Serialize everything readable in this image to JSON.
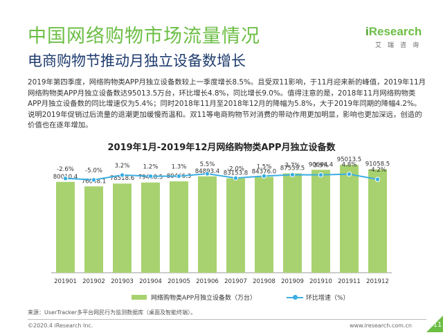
{
  "header": {
    "title": "中国网络购物市场流量情况",
    "subtitle": "电商购物节推动月独立设备数增长",
    "logo_brand_i": "i",
    "logo_brand_rest": "Research",
    "logo_cn": "艾瑞咨询"
  },
  "description": "2019年第四季度，网络购物类APP月独立设备数较上一季度增长8.5%。且受双11影响，于11月迎来新的峰值，2019年11月网络购物类APP月独立设备数达95013.5万台，环比增长4.8%，同比增长9.0%。值得注意的是，2018年11月网络购物类APP月独立设备数的同比增速仅为5.4%；同时2018年11月至2018年12月的降幅为5.8%，大于2019年同期的降幅4.2%。说明2019年促销过后流量的退潮更加缓慢而温和。双11等电商购物节对消费的带动作用更加明显，影响也更加深远，创造的价值也在逐年增加。",
  "chart_data": {
    "type": "bar",
    "title": "2019年1月-2019年12月网络购物类APP月独立设备数",
    "categories": [
      "201901",
      "201902",
      "201903",
      "201904",
      "201905",
      "201906",
      "201907",
      "201908",
      "201909",
      "201910",
      "201911",
      "201912"
    ],
    "series": [
      {
        "name": "网络购物类APP月独立设备数（万台）",
        "type": "bar",
        "values": [
          80010.4,
          76048.1,
          78518.6,
          79438.5,
          80496.3,
          84893.4,
          83153.8,
          84376.0,
          87539.5,
          90644.4,
          95013.5,
          91058.5
        ],
        "labels": [
          "80010.4",
          "76048.1",
          "78518.6",
          "79438.5",
          "80496.3",
          "84893.4",
          "83153.8",
          "84376.0",
          "87539.5",
          "90644.4",
          "95013.5",
          "91058.5"
        ]
      },
      {
        "name": "环比增速（%）",
        "type": "line",
        "values": [
          -2.6,
          -5.0,
          3.2,
          1.2,
          1.3,
          5.5,
          -2.0,
          1.5,
          3.7,
          3.5,
          4.8,
          -4.2
        ],
        "labels": [
          "-2.6%",
          "-5.0%",
          "3.2%",
          "1.2%",
          "1.3%",
          "5.5%",
          "-2.0%",
          "1.5%",
          "3.7%",
          "3.5%",
          "4.8%",
          "-4.2%"
        ]
      }
    ],
    "ylim": [
      0,
      100000
    ],
    "line_ylim": [
      -60,
      40
    ],
    "grid": false,
    "legend_position": "bottom",
    "colors": {
      "bar": "#a8d270",
      "line": "#3aaee3"
    }
  },
  "footer": {
    "source": "来源：UserTracker多平台网民行为监测数据库（桌面及智能终端）。",
    "copyright": "©2020.4 iResearch Inc.",
    "url": "www.iresearch.com.cn",
    "page": "11"
  }
}
